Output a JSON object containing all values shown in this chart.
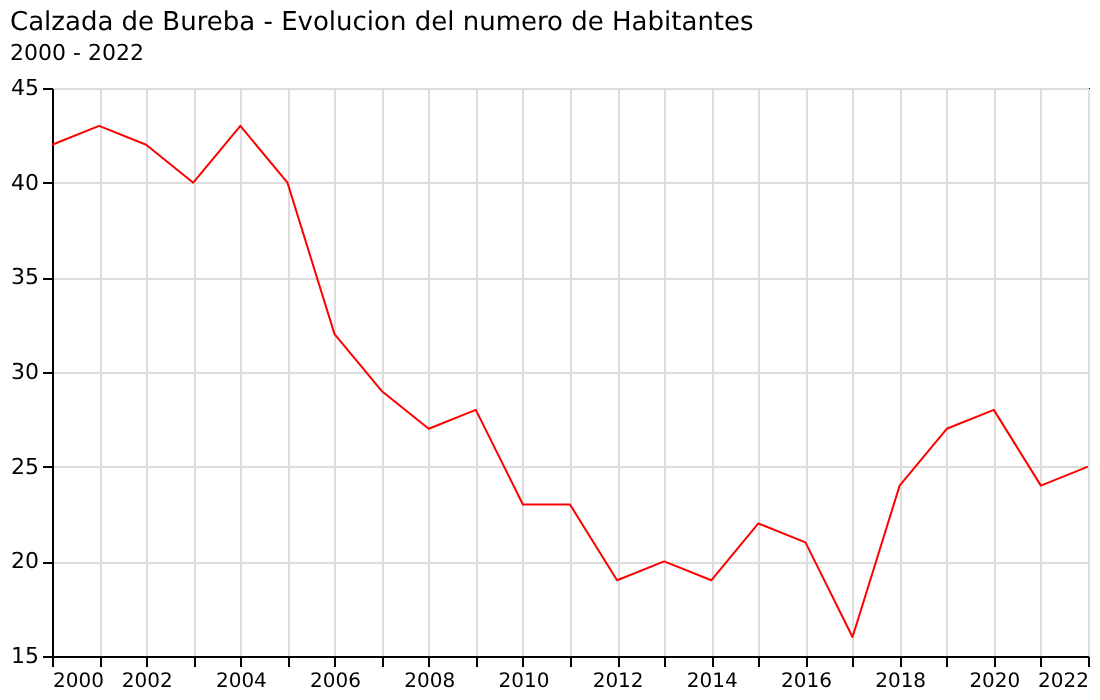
{
  "chart_data": {
    "type": "line",
    "title": "Calzada de Bureba - Evolucion del numero de Habitantes",
    "subtitle": "2000 - 2022",
    "x": [
      2000,
      2001,
      2002,
      2003,
      2004,
      2005,
      2006,
      2007,
      2008,
      2009,
      2010,
      2011,
      2012,
      2013,
      2014,
      2015,
      2016,
      2017,
      2018,
      2019,
      2020,
      2021,
      2022
    ],
    "series": [
      {
        "color": "#ff0000",
        "values": [
          42,
          43,
          42,
          40,
          43,
          40,
          32,
          29,
          27,
          28,
          23,
          23,
          19,
          20,
          19,
          22,
          21,
          16,
          24,
          27,
          28,
          24,
          25
        ]
      }
    ],
    "xlim": [
      2000,
      2022
    ],
    "xticks": [
      2000,
      {
        "value": 2001,
        "label": null
      },
      2002,
      {
        "value": 2003,
        "label": null
      },
      2004,
      {
        "value": 2005,
        "label": null
      },
      2006,
      {
        "value": 2007,
        "label": null
      },
      2008,
      {
        "value": 2009,
        "label": null
      },
      2010,
      {
        "value": 2011,
        "label": null
      },
      2012,
      {
        "value": 2013,
        "label": null
      },
      2014,
      {
        "value": 2015,
        "label": null
      },
      2016,
      {
        "value": 2017,
        "label": null
      },
      2018,
      {
        "value": 2019,
        "label": null
      },
      2020,
      {
        "value": 2021,
        "label": null
      },
      2022
    ],
    "ylim": [
      15,
      45
    ],
    "yticks": [
      15,
      20,
      25,
      30,
      35,
      40,
      45
    ],
    "grid": true,
    "marker": "none",
    "line_style": "solid"
  }
}
